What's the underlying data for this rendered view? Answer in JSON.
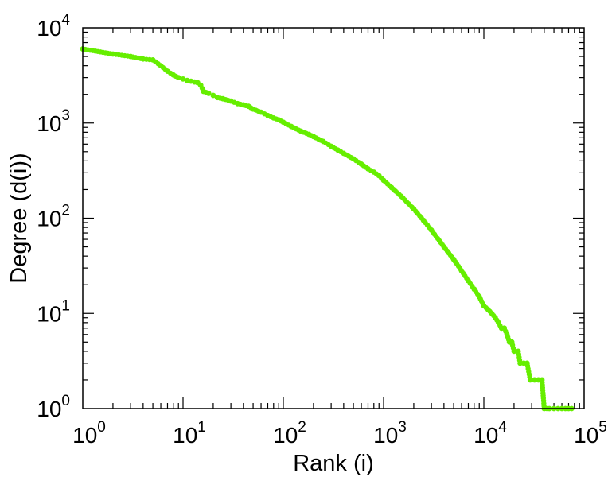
{
  "chart_data": {
    "type": "scatter",
    "xlabel": "Rank (i)",
    "ylabel": "Degree (d(i))",
    "xscale": "log",
    "yscale": "log",
    "xlim": [
      1,
      100000
    ],
    "ylim": [
      1,
      10000
    ],
    "x_ticks": [
      {
        "base": "10",
        "exp": "0",
        "value": 1
      },
      {
        "base": "10",
        "exp": "1",
        "value": 10
      },
      {
        "base": "10",
        "exp": "2",
        "value": 100
      },
      {
        "base": "10",
        "exp": "3",
        "value": 1000
      },
      {
        "base": "10",
        "exp": "4",
        "value": 10000
      },
      {
        "base": "10",
        "exp": "5",
        "value": 100000
      }
    ],
    "y_ticks": [
      {
        "base": "10",
        "exp": "0",
        "value": 1
      },
      {
        "base": "10",
        "exp": "1",
        "value": 10
      },
      {
        "base": "10",
        "exp": "2",
        "value": 100
      },
      {
        "base": "10",
        "exp": "3",
        "value": 1000
      },
      {
        "base": "10",
        "exp": "4",
        "value": 10000
      }
    ],
    "grid": false,
    "marker_color": "#66ee00",
    "series": [
      {
        "points": [
          [
            1,
            6000
          ],
          [
            2,
            5300
          ],
          [
            3,
            5000
          ],
          [
            4,
            4700
          ],
          [
            5,
            4600
          ],
          [
            6,
            4000
          ],
          [
            7,
            3500
          ],
          [
            8,
            3200
          ],
          [
            9,
            3000
          ],
          [
            10,
            2900
          ],
          [
            11,
            2800
          ],
          [
            12,
            2750
          ],
          [
            13,
            2700
          ],
          [
            14,
            2650
          ],
          [
            15,
            2500
          ],
          [
            16,
            2150
          ],
          [
            18,
            2050
          ],
          [
            20,
            1950
          ],
          [
            22,
            1850
          ],
          [
            25,
            1800
          ],
          [
            30,
            1700
          ],
          [
            35,
            1600
          ],
          [
            40,
            1550
          ],
          [
            45,
            1500
          ],
          [
            50,
            1400
          ],
          [
            60,
            1300
          ],
          [
            70,
            1200
          ],
          [
            80,
            1130
          ],
          [
            90,
            1080
          ],
          [
            100,
            1020
          ],
          [
            120,
            920
          ],
          [
            150,
            820
          ],
          [
            180,
            760
          ],
          [
            200,
            720
          ],
          [
            250,
            640
          ],
          [
            300,
            570
          ],
          [
            350,
            520
          ],
          [
            400,
            480
          ],
          [
            500,
            420
          ],
          [
            600,
            370
          ],
          [
            700,
            330
          ],
          [
            800,
            305
          ],
          [
            900,
            280
          ],
          [
            1000,
            250
          ],
          [
            1200,
            210
          ],
          [
            1500,
            170
          ],
          [
            2000,
            125
          ],
          [
            2500,
            95
          ],
          [
            3000,
            75
          ],
          [
            4000,
            50
          ],
          [
            5000,
            37
          ],
          [
            6000,
            28
          ],
          [
            7000,
            22
          ],
          [
            8000,
            18
          ],
          [
            9000,
            15
          ],
          [
            10000,
            12
          ],
          [
            11000,
            11
          ],
          [
            12000,
            10
          ],
          [
            13000,
            9
          ],
          [
            14000,
            8
          ],
          [
            15000,
            7
          ],
          [
            16000,
            7
          ],
          [
            17000,
            6
          ],
          [
            18000,
            5
          ],
          [
            19000,
            5
          ],
          [
            20000,
            4
          ],
          [
            22000,
            4
          ],
          [
            23000,
            3
          ],
          [
            25000,
            3
          ],
          [
            27000,
            3
          ],
          [
            29000,
            2
          ],
          [
            32000,
            2
          ],
          [
            35000,
            2
          ],
          [
            38000,
            2
          ],
          [
            40000,
            1
          ],
          [
            45000,
            1
          ],
          [
            50000,
            1
          ],
          [
            55000,
            1
          ],
          [
            60000,
            1
          ],
          [
            65000,
            1
          ],
          [
            70000,
            1
          ],
          [
            75000,
            1
          ]
        ]
      }
    ]
  }
}
